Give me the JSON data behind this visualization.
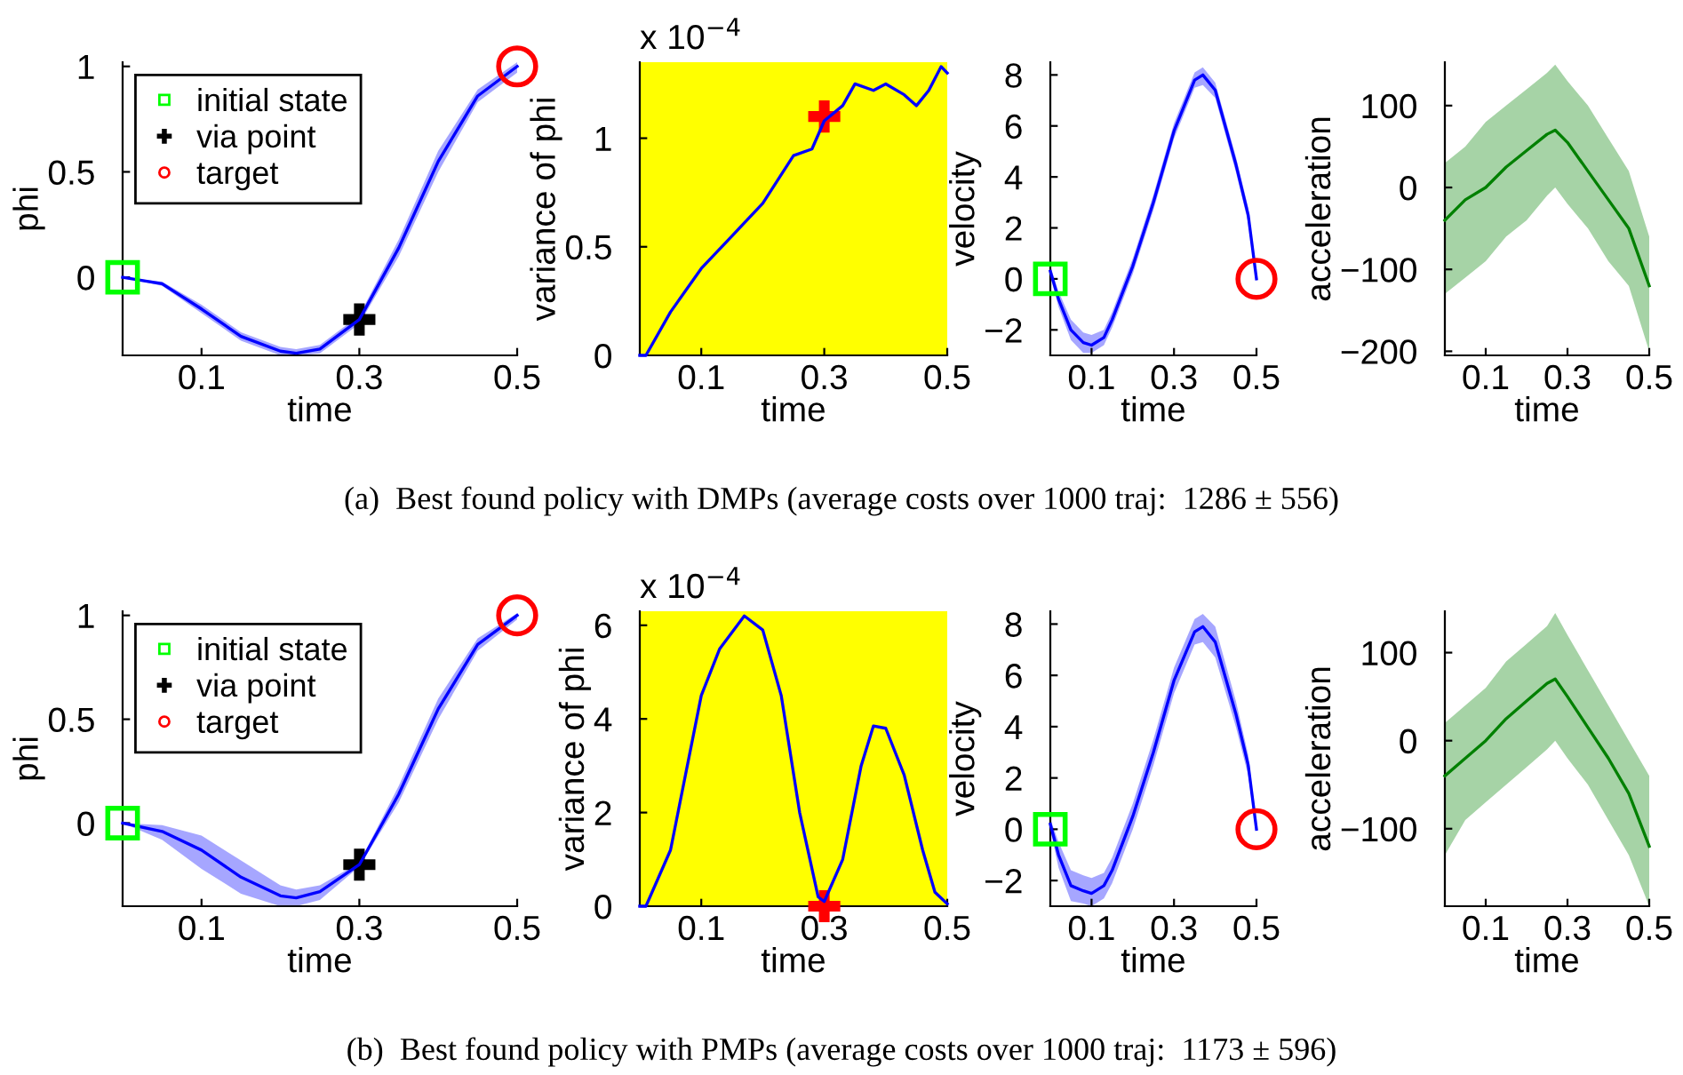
{
  "chart_data": [
    {
      "type": "line",
      "xlabel": "time",
      "ylabel": "phi",
      "xlim": [
        0,
        0.5
      ],
      "xticks": [
        0.1,
        0.3,
        0.5
      ],
      "ylim": [
        -0.37,
        1.02
      ],
      "yticks": [
        0,
        0.5,
        1
      ],
      "grid": false,
      "legend": "top left",
      "annotations": [
        "(a)  Best found policy with DMPs (average costs over 1000 traj:  1286 ± 556)"
      ],
      "series": [
        {
          "color": "#0000ff",
          "x": [
            0,
            0.05,
            0.1,
            0.15,
            0.2,
            0.22,
            0.25,
            0.3,
            0.35,
            0.4,
            0.45,
            0.5
          ],
          "values": [
            0,
            -0.03,
            -0.15,
            -0.28,
            -0.35,
            -0.36,
            -0.34,
            -0.2,
            0.14,
            0.55,
            0.86,
            1.0
          ],
          "lower": [
            0,
            -0.04,
            -0.17,
            -0.3,
            -0.37,
            -0.37,
            -0.36,
            -0.22,
            0.1,
            0.5,
            0.83,
            0.97
          ],
          "upper": [
            0,
            -0.02,
            -0.13,
            -0.26,
            -0.33,
            -0.34,
            -0.32,
            -0.18,
            0.18,
            0.6,
            0.89,
            1.02
          ]
        },
        {
          "type": "scatter",
          "name": "initial state",
          "color": "#00ff00",
          "marker": "square",
          "x": [
            0
          ],
          "values": [
            0
          ]
        },
        {
          "type": "scatter",
          "name": "via point",
          "color": "#000000",
          "marker": "cross",
          "x": [
            0.3
          ],
          "values": [
            -0.2
          ]
        },
        {
          "type": "scatter",
          "name": "target",
          "color": "#ff0000",
          "marker": "circle",
          "x": [
            0.5
          ],
          "values": [
            1.0
          ]
        }
      ]
    },
    {
      "type": "line",
      "xlabel": "time",
      "ylabel": "variance of phi",
      "xlim": [
        0,
        0.5
      ],
      "xticks": [
        0.1,
        0.3,
        0.5
      ],
      "ylim": [
        0,
        1.35
      ],
      "yticks": [
        0,
        0.5,
        1
      ],
      "grid": false,
      "annotations": [
        "x 10$^{−4}$"
      ],
      "bands": [
        {
          "axis": "x",
          "from": 0,
          "to": 0.5,
          "color": "#ffff00"
        }
      ],
      "series": [
        {
          "color": "#0000ff",
          "x": [
            0,
            0.01,
            0.05,
            0.1,
            0.15,
            0.2,
            0.25,
            0.28,
            0.3,
            0.33,
            0.35,
            0.38,
            0.4,
            0.43,
            0.45,
            0.47,
            0.49,
            0.5
          ],
          "values": [
            0,
            0,
            0.2,
            0.4,
            0.55,
            0.7,
            0.92,
            0.95,
            1.08,
            1.15,
            1.25,
            1.22,
            1.25,
            1.2,
            1.15,
            1.22,
            1.33,
            1.3
          ]
        },
        {
          "type": "scatter",
          "color": "#ff0000",
          "marker": "cross",
          "x": [
            0.3
          ],
          "values": [
            1.1
          ]
        }
      ]
    },
    {
      "type": "line",
      "xlabel": "time",
      "ylabel": "velocity",
      "xlim": [
        0,
        0.5
      ],
      "xticks": [
        0.1,
        0.3,
        0.5
      ],
      "ylim": [
        -3,
        8.5
      ],
      "yticks": [
        -2,
        0,
        2,
        4,
        6,
        8
      ],
      "grid": false,
      "series": [
        {
          "color": "#0000ff",
          "x": [
            0,
            0.02,
            0.05,
            0.08,
            0.1,
            0.13,
            0.15,
            0.2,
            0.25,
            0.3,
            0.35,
            0.37,
            0.4,
            0.45,
            0.48,
            0.5
          ],
          "values": [
            0.3,
            -0.8,
            -2.0,
            -2.5,
            -2.6,
            -2.3,
            -1.6,
            0.5,
            3.0,
            5.8,
            7.8,
            8.0,
            7.4,
            4.5,
            2.5,
            0
          ],
          "lower": [
            0.1,
            -1.1,
            -2.4,
            -2.9,
            -2.9,
            -2.6,
            -1.9,
            0.2,
            2.7,
            5.5,
            7.5,
            7.6,
            7.1,
            4.2,
            2.2,
            -0.1
          ],
          "upper": [
            0.5,
            -0.5,
            -1.6,
            -2.1,
            -2.2,
            -2.0,
            -1.3,
            0.8,
            3.3,
            6.1,
            8.1,
            8.3,
            7.7,
            4.8,
            2.8,
            0.1
          ]
        },
        {
          "type": "scatter",
          "color": "#00ff00",
          "marker": "square",
          "x": [
            0
          ],
          "values": [
            0
          ]
        },
        {
          "type": "scatter",
          "color": "#ff0000",
          "marker": "circle",
          "x": [
            0.5
          ],
          "values": [
            0
          ]
        }
      ]
    },
    {
      "type": "line",
      "xlabel": "time",
      "ylabel": "acceleration",
      "xlim": [
        0,
        0.5
      ],
      "xticks": [
        0.1,
        0.3,
        0.5
      ],
      "ylim": [
        -205,
        153
      ],
      "yticks": [
        -200,
        -100,
        0,
        100
      ],
      "grid": false,
      "series": [
        {
          "color": "#008000",
          "x": [
            0,
            0.05,
            0.1,
            0.15,
            0.2,
            0.25,
            0.27,
            0.3,
            0.35,
            0.4,
            0.45,
            0.5
          ],
          "values": [
            -40,
            -15,
            0,
            25,
            45,
            65,
            70,
            55,
            20,
            -15,
            -50,
            -120
          ],
          "lower": [
            -130,
            -110,
            -90,
            -60,
            -40,
            -10,
            0,
            -20,
            -50,
            -90,
            -120,
            -200
          ],
          "upper": [
            30,
            50,
            80,
            100,
            120,
            140,
            150,
            130,
            100,
            60,
            20,
            -60
          ]
        }
      ]
    },
    {
      "type": "line",
      "xlabel": "time",
      "ylabel": "phi",
      "xlim": [
        0,
        0.5
      ],
      "xticks": [
        0.1,
        0.3,
        0.5
      ],
      "ylim": [
        -0.4,
        1.02
      ],
      "yticks": [
        0,
        0.5,
        1
      ],
      "grid": false,
      "legend": "top left",
      "annotations": [
        "(b)  Best found policy with PMPs (average costs over 1000 traj:  1173 ± 596)"
      ],
      "series": [
        {
          "color": "#0000ff",
          "x": [
            0,
            0.05,
            0.1,
            0.15,
            0.2,
            0.22,
            0.25,
            0.3,
            0.35,
            0.4,
            0.45,
            0.5
          ],
          "values": [
            0,
            -0.04,
            -0.13,
            -0.26,
            -0.35,
            -0.36,
            -0.33,
            -0.2,
            0.14,
            0.55,
            0.86,
            1.0
          ],
          "lower": [
            0,
            -0.08,
            -0.22,
            -0.34,
            -0.4,
            -0.4,
            -0.37,
            -0.21,
            0.1,
            0.5,
            0.83,
            0.98
          ],
          "upper": [
            0,
            -0.01,
            -0.06,
            -0.18,
            -0.3,
            -0.32,
            -0.3,
            -0.19,
            0.18,
            0.6,
            0.89,
            1.01
          ]
        },
        {
          "type": "scatter",
          "name": "initial state",
          "color": "#00ff00",
          "marker": "square",
          "x": [
            0
          ],
          "values": [
            0
          ]
        },
        {
          "type": "scatter",
          "name": "via point",
          "color": "#000000",
          "marker": "cross",
          "x": [
            0.3
          ],
          "values": [
            -0.2
          ]
        },
        {
          "type": "scatter",
          "name": "target",
          "color": "#ff0000",
          "marker": "circle",
          "x": [
            0.5
          ],
          "values": [
            1.0
          ]
        }
      ]
    },
    {
      "type": "line",
      "xlabel": "time",
      "ylabel": "variance of phi",
      "xlim": [
        0,
        0.5
      ],
      "xticks": [
        0.1,
        0.3,
        0.5
      ],
      "ylim": [
        0,
        6.3
      ],
      "yticks": [
        0,
        2,
        4,
        6
      ],
      "grid": false,
      "annotations": [
        "x 10$^{−4}$"
      ],
      "bands": [
        {
          "axis": "x",
          "from": 0,
          "to": 0.5,
          "color": "#ffff00"
        }
      ],
      "series": [
        {
          "color": "#0000ff",
          "x": [
            0,
            0.01,
            0.05,
            0.1,
            0.13,
            0.17,
            0.2,
            0.23,
            0.26,
            0.29,
            0.3,
            0.33,
            0.36,
            0.38,
            0.4,
            0.43,
            0.46,
            0.48,
            0.5
          ],
          "values": [
            0,
            0,
            1.2,
            4.5,
            5.5,
            6.2,
            5.9,
            4.5,
            2.0,
            0.2,
            0.1,
            1.0,
            3.0,
            3.85,
            3.8,
            2.8,
            1.2,
            0.3,
            0.05
          ]
        },
        {
          "type": "scatter",
          "color": "#ff0000",
          "marker": "cross",
          "x": [
            0.3
          ],
          "values": [
            0
          ]
        }
      ]
    },
    {
      "type": "line",
      "xlabel": "time",
      "ylabel": "velocity",
      "xlim": [
        0,
        0.5
      ],
      "xticks": [
        0.1,
        0.3,
        0.5
      ],
      "ylim": [
        -3,
        8.5
      ],
      "yticks": [
        -2,
        0,
        2,
        4,
        6,
        8
      ],
      "grid": false,
      "series": [
        {
          "color": "#0000ff",
          "x": [
            0,
            0.02,
            0.05,
            0.08,
            0.1,
            0.13,
            0.15,
            0.2,
            0.25,
            0.3,
            0.35,
            0.37,
            0.4,
            0.45,
            0.48,
            0.5
          ],
          "values": [
            0.2,
            -1.0,
            -2.2,
            -2.4,
            -2.5,
            -2.2,
            -1.6,
            0.5,
            3.0,
            5.8,
            7.7,
            7.9,
            7.3,
            4.5,
            2.5,
            0
          ],
          "lower": [
            0,
            -1.5,
            -2.8,
            -2.9,
            -3.0,
            -2.7,
            -2.1,
            0.0,
            2.5,
            5.3,
            7.2,
            7.3,
            6.7,
            4.0,
            2.1,
            -0.1
          ],
          "upper": [
            0.4,
            -0.5,
            -1.6,
            -1.8,
            -1.9,
            -1.7,
            -1.1,
            1.0,
            3.5,
            6.3,
            8.2,
            8.4,
            7.9,
            5.0,
            2.9,
            0.1
          ]
        },
        {
          "type": "scatter",
          "color": "#00ff00",
          "marker": "square",
          "x": [
            0
          ],
          "values": [
            0
          ]
        },
        {
          "type": "scatter",
          "color": "#ff0000",
          "marker": "circle",
          "x": [
            0.5
          ],
          "values": [
            0
          ]
        }
      ]
    },
    {
      "type": "line",
      "xlabel": "time",
      "ylabel": "acceleration",
      "xlim": [
        0,
        0.5
      ],
      "xticks": [
        0.1,
        0.3,
        0.5
      ],
      "ylim": [
        -188,
        147
      ],
      "yticks": [
        -100,
        0,
        100
      ],
      "grid": false,
      "series": [
        {
          "color": "#008000",
          "x": [
            0,
            0.05,
            0.1,
            0.15,
            0.2,
            0.25,
            0.27,
            0.3,
            0.35,
            0.4,
            0.45,
            0.5
          ],
          "values": [
            -40,
            -20,
            0,
            25,
            45,
            65,
            70,
            50,
            15,
            -20,
            -60,
            -120
          ],
          "lower": [
            -130,
            -90,
            -70,
            -50,
            -30,
            -10,
            0,
            -20,
            -50,
            -90,
            -130,
            -188
          ],
          "upper": [
            20,
            40,
            60,
            90,
            110,
            130,
            145,
            120,
            80,
            40,
            0,
            -40
          ]
        }
      ]
    }
  ]
}
